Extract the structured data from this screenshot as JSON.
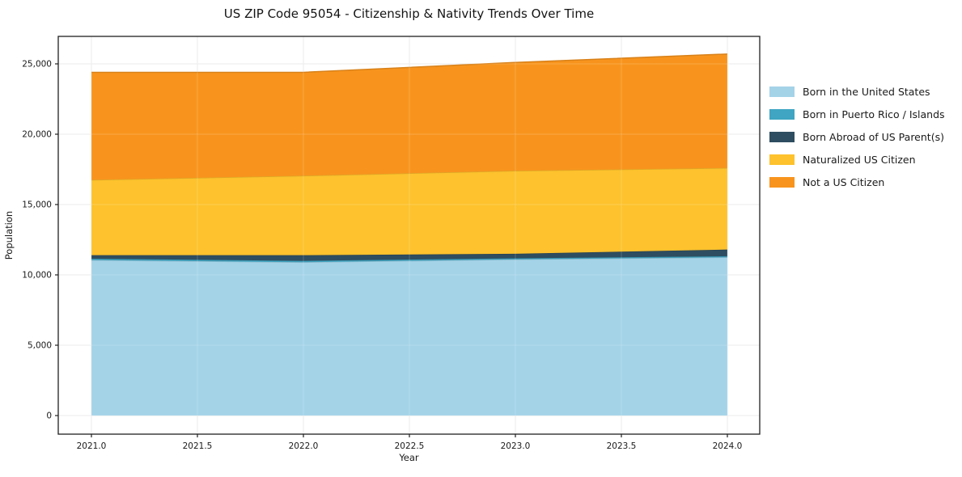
{
  "title": "US ZIP Code 95054 - Citizenship & Nativity Trends Over Time",
  "chart_data": {
    "type": "area",
    "stacked": true,
    "title": "US ZIP Code 95054 - Citizenship & Nativity Trends Over Time",
    "xlabel": "Year",
    "ylabel": "Population",
    "x": [
      2021,
      2022,
      2023,
      2024
    ],
    "series": [
      {
        "name": "Born in the United States",
        "color": "#A4D3E8",
        "values": [
          11050,
          10900,
          11100,
          11250
        ]
      },
      {
        "name": "Born in Puerto Rico / Islands",
        "color": "#3FA5C2",
        "values": [
          100,
          100,
          80,
          80
        ]
      },
      {
        "name": "Born Abroad of US Parent(s)",
        "color": "#2E4D60",
        "values": [
          250,
          400,
          320,
          470
        ]
      },
      {
        "name": "Naturalized US Citizen",
        "color": "#FDC22D",
        "values": [
          5350,
          5650,
          5900,
          5800
        ]
      },
      {
        "name": "Not a US Citizen",
        "color": "#F8941D",
        "values": [
          7650,
          7350,
          7700,
          8100
        ]
      }
    ],
    "totals": [
      24400,
      24400,
      25100,
      25700
    ],
    "xticks": [
      2021.0,
      2021.5,
      2022.0,
      2022.5,
      2023.0,
      2023.5,
      2024.0
    ],
    "yticks": [
      0,
      5000,
      10000,
      15000,
      20000,
      25000
    ],
    "ylim": [
      0,
      25000
    ],
    "xlim": [
      2021,
      2024
    ],
    "grid": true,
    "legend_position": "right",
    "grid_color": "#E7E7E7",
    "spine_color": "#1f1f1f",
    "tick_label_color": "#1a1a1a"
  }
}
